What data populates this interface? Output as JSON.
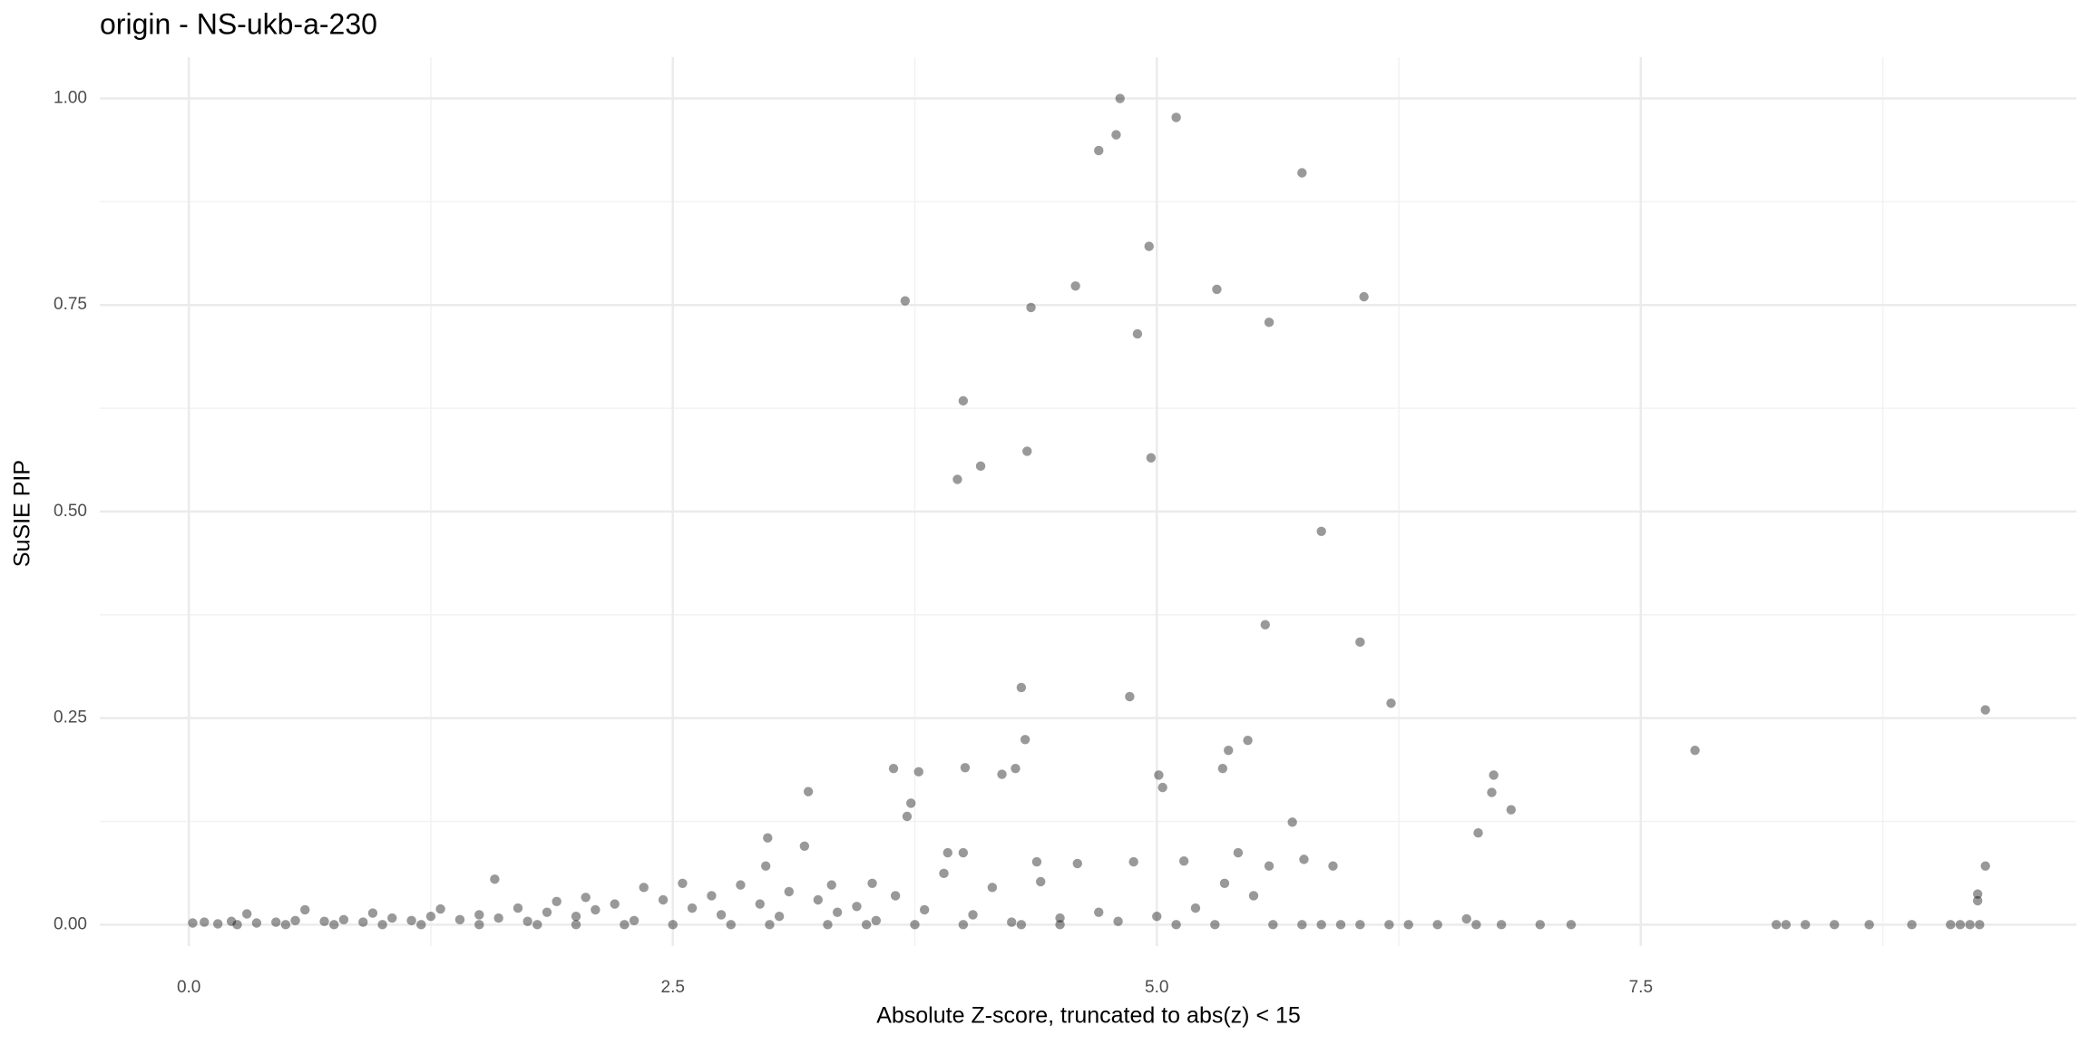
{
  "chart_data": {
    "type": "scatter",
    "title": "origin - NS-ukb-a-230",
    "x_label": "Absolute Z-score, truncated to abs(z) < 15",
    "y_label": "SuSIE PIP",
    "xlim": [
      -0.46,
      9.75
    ],
    "ylim": [
      -0.026,
      1.05
    ],
    "xticks": [
      {
        "value": 0,
        "label": "0.0"
      },
      2.5,
      {
        "value": 5,
        "label": "5.0"
      },
      7.5
    ],
    "yticks": [
      {
        "value": 0,
        "label": "0.00"
      },
      {
        "value": 0.25,
        "label": "0.25"
      },
      {
        "value": 0.5,
        "label": "0.50"
      },
      {
        "value": 0.75,
        "label": "0.75"
      },
      {
        "value": 1,
        "label": "1.00"
      }
    ],
    "grid": true,
    "color": "#000000",
    "opacity": 0.4,
    "x": [
      4.81,
      4.79,
      5.1,
      4.7,
      5.75,
      4.96,
      4.58,
      5.31,
      3.7,
      6.07,
      4.35,
      5.58,
      4.9,
      4.0,
      4.09,
      3.97,
      4.33,
      4.97,
      5.85,
      5.56,
      6.05,
      4.3,
      4.86,
      6.21,
      9.28,
      4.32,
      5.47,
      7.78,
      5.37,
      3.64,
      3.77,
      4.01,
      4.27,
      4.2,
      5.34,
      5.01,
      5.03,
      6.74,
      6.73,
      3.2,
      3.73,
      3.71,
      6.83,
      5.7,
      6.66,
      2.99,
      3.18,
      3.92,
      4.0,
      5.42,
      4.38,
      4.88,
      5.14,
      5.76,
      5.91,
      9.28,
      5.58,
      4.59,
      2.98,
      1.58,
      3.32,
      3.53,
      9.24,
      9.24,
      0.02,
      0.08,
      0.15,
      0.22,
      0.3,
      0.35,
      0.45,
      0.55,
      0.6,
      0.7,
      0.8,
      0.9,
      0.95,
      1.05,
      1.15,
      1.25,
      1.3,
      1.4,
      1.5,
      1.6,
      1.7,
      1.75,
      1.85,
      1.9,
      2.0,
      2.05,
      2.1,
      2.2,
      2.3,
      2.35,
      2.45,
      2.55,
      2.6,
      2.7,
      2.75,
      2.85,
      2.95,
      3.05,
      3.1,
      3.25,
      3.35,
      3.45,
      3.55,
      3.65,
      3.8,
      3.9,
      4.05,
      4.15,
      4.25,
      4.4,
      4.5,
      4.7,
      4.8,
      5.0,
      5.2,
      5.35,
      5.5,
      5.6,
      5.75,
      5.85,
      5.95,
      6.05,
      6.2,
      6.3,
      6.45,
      6.6,
      6.65,
      6.78,
      6.98,
      7.14,
      8.2,
      8.25,
      8.35,
      8.5,
      8.68,
      8.9,
      9.1,
      9.15,
      9.2,
      9.25,
      0.5,
      1.0,
      1.5,
      2.0,
      2.5,
      3.0,
      3.5,
      4.0,
      4.5,
      5.1,
      5.3,
      0.25,
      0.75,
      1.2,
      1.8,
      2.25,
      2.8,
      3.3,
      3.75,
      4.3
    ],
    "values": [
      1.0,
      0.956,
      0.977,
      0.937,
      0.91,
      0.821,
      0.773,
      0.769,
      0.755,
      0.76,
      0.747,
      0.729,
      0.715,
      0.634,
      0.555,
      0.539,
      0.573,
      0.565,
      0.476,
      0.363,
      0.342,
      0.287,
      0.276,
      0.268,
      0.26,
      0.224,
      0.223,
      0.211,
      0.211,
      0.189,
      0.185,
      0.19,
      0.189,
      0.182,
      0.189,
      0.181,
      0.166,
      0.181,
      0.16,
      0.161,
      0.147,
      0.131,
      0.139,
      0.124,
      0.111,
      0.105,
      0.095,
      0.087,
      0.087,
      0.087,
      0.076,
      0.076,
      0.077,
      0.079,
      0.071,
      0.071,
      0.071,
      0.074,
      0.071,
      0.055,
      0.048,
      0.05,
      0.037,
      0.029,
      0.002,
      0.003,
      0.001,
      0.004,
      0.013,
      0.002,
      0.003,
      0.005,
      0.018,
      0.004,
      0.006,
      0.003,
      0.014,
      0.008,
      0.005,
      0.01,
      0.019,
      0.006,
      0.012,
      0.008,
      0.02,
      0.004,
      0.015,
      0.028,
      0.01,
      0.033,
      0.018,
      0.025,
      0.005,
      0.045,
      0.03,
      0.05,
      0.02,
      0.035,
      0.012,
      0.048,
      0.025,
      0.01,
      0.04,
      0.03,
      0.015,
      0.022,
      0.005,
      0.035,
      0.018,
      0.062,
      0.012,
      0.045,
      0.003,
      0.052,
      0.008,
      0.015,
      0.004,
      0.01,
      0.02,
      0.05,
      0.035,
      0.0,
      0.0,
      0.0,
      0.0,
      0.0,
      0.0,
      0.0,
      0.0,
      0.007,
      0.0,
      0.0,
      0.0,
      0.0,
      0.0,
      0.0,
      0.0,
      0.0,
      0.0,
      0.0,
      0.0,
      0.0,
      0.0,
      0.0,
      0.0,
      0.0,
      0.0,
      0.0,
      0.0,
      0.0,
      0.0,
      0.0,
      0.0,
      0.0,
      0.0,
      0.0,
      0.0,
      0.0,
      0.0,
      0.0,
      0.0,
      0.0,
      0.0,
      0.0
    ]
  }
}
